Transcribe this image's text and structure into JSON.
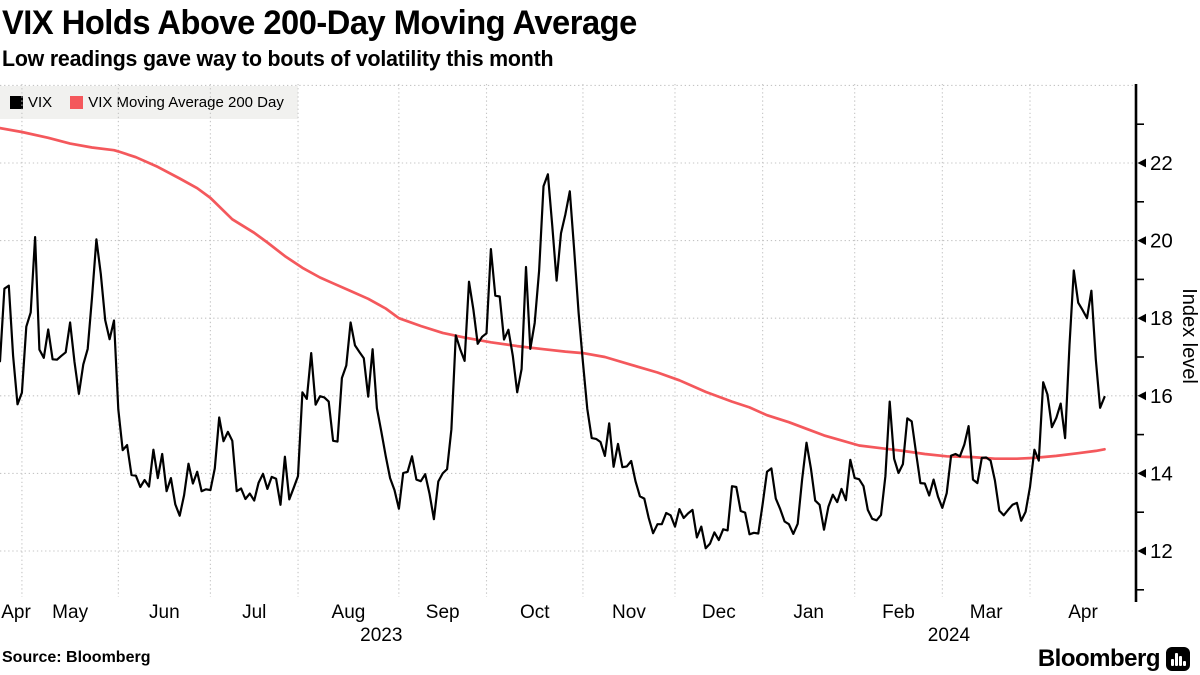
{
  "header": {
    "title": "VIX Holds Above 200-Day Moving Average",
    "subtitle": "Low readings gave way to bouts of volatility this month"
  },
  "legend": {
    "items": [
      {
        "label": "VIX",
        "color": "#000000"
      },
      {
        "label": "VIX Moving Average 200 Day",
        "color": "#f4585c"
      }
    ]
  },
  "footer": {
    "source": "Source: Bloomberg",
    "brand": "Bloomberg"
  },
  "chart_data": {
    "type": "line",
    "title": "VIX Holds Above 200-Day Moving Average",
    "subtitle": "Low readings gave way to bouts of volatility this month",
    "ylabel": "Index level",
    "yticks": [
      12,
      14,
      16,
      18,
      20,
      22
    ],
    "ylim": [
      10.8,
      24
    ],
    "grid": "dotted",
    "legend_position": "top-left",
    "x_axis": {
      "months": [
        {
          "label": "Apr",
          "i": 0
        },
        {
          "label": "May",
          "i": 5
        },
        {
          "label": "Jun",
          "i": 27
        },
        {
          "label": "Jul",
          "i": 48
        },
        {
          "label": "Aug",
          "i": 68
        },
        {
          "label": "Sep",
          "i": 91
        },
        {
          "label": "Oct",
          "i": 111
        },
        {
          "label": "Nov",
          "i": 133
        },
        {
          "label": "Dec",
          "i": 154
        },
        {
          "label": "Jan",
          "i": 174
        },
        {
          "label": "Feb",
          "i": 195
        },
        {
          "label": "Mar",
          "i": 215
        },
        {
          "label": "Apr",
          "i": 235
        }
      ],
      "years": [
        {
          "label": "2023",
          "start_i": 0,
          "end_i": 174
        },
        {
          "label": "2024",
          "start_i": 174,
          "end_i": 259
        }
      ]
    },
    "series": [
      {
        "name": "VIX",
        "color": "#000000",
        "values": [
          16.89,
          18.76,
          18.84,
          17.03,
          15.78,
          16.08,
          17.78,
          18.15,
          20.09,
          17.19,
          16.98,
          17.71,
          16.94,
          16.93,
          17.03,
          17.12,
          17.89,
          16.87,
          16.05,
          16.81,
          17.21,
          18.53,
          20.03,
          19.14,
          17.95,
          17.46,
          17.94,
          15.65,
          14.6,
          14.73,
          13.96,
          13.94,
          13.65,
          13.83,
          13.66,
          14.61,
          13.88,
          14.5,
          13.54,
          13.88,
          13.2,
          12.91,
          13.44,
          14.25,
          13.74,
          14.04,
          13.54,
          13.59,
          13.57,
          14.13,
          15.44,
          14.83,
          15.07,
          14.84,
          13.54,
          13.61,
          13.34,
          13.48,
          13.3,
          13.76,
          13.99,
          13.6,
          13.91,
          13.86,
          13.19,
          14.43,
          13.33,
          13.63,
          13.93,
          16.09,
          15.92,
          17.1,
          15.77,
          15.99,
          15.96,
          15.85,
          14.84,
          14.82,
          16.46,
          16.78,
          17.89,
          17.3,
          17.13,
          16.97,
          15.98,
          17.2,
          15.68,
          15.08,
          14.45,
          13.88,
          13.57,
          13.09,
          14.01,
          14.04,
          14.44,
          13.84,
          13.8,
          13.98,
          13.48,
          12.82,
          13.79,
          14.0,
          14.11,
          15.14,
          17.56,
          17.2,
          16.9,
          18.94,
          18.22,
          17.34,
          17.52,
          17.61,
          19.78,
          18.58,
          18.56,
          17.45,
          17.7,
          17.03,
          16.09,
          16.69,
          19.32,
          17.21,
          17.88,
          19.22,
          21.4,
          21.71,
          20.37,
          18.97,
          20.19,
          20.68,
          21.27,
          19.75,
          18.14,
          16.87,
          15.66,
          14.91,
          14.89,
          14.81,
          14.45,
          15.29,
          14.17,
          14.76,
          14.16,
          14.18,
          14.32,
          13.8,
          13.41,
          13.35,
          12.85,
          12.46,
          12.69,
          12.69,
          12.98,
          12.92,
          12.63,
          13.08,
          12.85,
          12.97,
          13.06,
          12.35,
          12.63,
          12.07,
          12.19,
          12.48,
          12.28,
          12.56,
          12.53,
          13.67,
          13.65,
          13.03,
          12.99,
          12.43,
          12.47,
          12.45,
          13.2,
          14.04,
          14.13,
          13.35,
          13.08,
          12.76,
          12.69,
          12.44,
          12.7,
          13.84,
          14.79,
          14.13,
          13.3,
          13.19,
          12.55,
          13.14,
          13.45,
          13.26,
          13.6,
          13.31,
          14.35,
          13.88,
          13.85,
          13.67,
          13.06,
          12.83,
          12.79,
          12.93,
          13.93,
          15.85,
          14.38,
          14.01,
          14.24,
          15.42,
          15.34,
          14.54,
          13.75,
          13.74,
          13.43,
          13.84,
          13.4,
          13.11,
          13.49,
          14.46,
          14.5,
          14.44,
          14.74,
          15.22,
          13.84,
          13.75,
          14.4,
          14.41,
          14.33,
          13.82,
          13.04,
          12.92,
          13.06,
          13.19,
          13.24,
          12.78,
          13.01,
          13.65,
          14.61,
          14.33,
          16.35,
          16.03,
          15.19,
          15.43,
          15.8,
          14.91,
          17.31,
          19.23,
          18.4,
          18.21,
          18.0,
          18.71,
          16.94,
          15.69,
          15.97
        ]
      },
      {
        "name": "VIX Moving Average 200 Day",
        "color": "#f4585c",
        "points": [
          [
            0,
            22.9
          ],
          [
            5,
            22.8
          ],
          [
            11,
            22.65
          ],
          [
            16,
            22.5
          ],
          [
            21,
            22.4
          ],
          [
            26,
            22.33
          ],
          [
            27,
            22.3
          ],
          [
            31,
            22.15
          ],
          [
            36,
            21.9
          ],
          [
            41,
            21.6
          ],
          [
            45,
            21.35
          ],
          [
            48,
            21.1
          ],
          [
            53,
            20.55
          ],
          [
            58,
            20.2
          ],
          [
            61,
            19.95
          ],
          [
            65,
            19.6
          ],
          [
            69,
            19.3
          ],
          [
            73,
            19.05
          ],
          [
            76,
            18.9
          ],
          [
            80,
            18.7
          ],
          [
            84,
            18.5
          ],
          [
            88,
            18.25
          ],
          [
            91,
            18.0
          ],
          [
            96,
            17.8
          ],
          [
            101,
            17.62
          ],
          [
            106,
            17.5
          ],
          [
            112,
            17.38
          ],
          [
            118,
            17.28
          ],
          [
            124,
            17.2
          ],
          [
            129,
            17.14
          ],
          [
            133,
            17.1
          ],
          [
            138,
            17.0
          ],
          [
            144,
            16.8
          ],
          [
            150,
            16.6
          ],
          [
            155,
            16.4
          ],
          [
            161,
            16.1
          ],
          [
            167,
            15.85
          ],
          [
            171,
            15.7
          ],
          [
            175,
            15.5
          ],
          [
            180,
            15.32
          ],
          [
            184,
            15.15
          ],
          [
            188,
            14.98
          ],
          [
            192,
            14.85
          ],
          [
            196,
            14.72
          ],
          [
            201,
            14.65
          ],
          [
            206,
            14.58
          ],
          [
            211,
            14.5
          ],
          [
            216,
            14.44
          ],
          [
            222,
            14.42
          ],
          [
            227,
            14.38
          ],
          [
            232,
            14.38
          ],
          [
            236,
            14.4
          ],
          [
            241,
            14.45
          ],
          [
            246,
            14.52
          ],
          [
            250,
            14.58
          ],
          [
            252,
            14.62
          ]
        ]
      }
    ]
  }
}
